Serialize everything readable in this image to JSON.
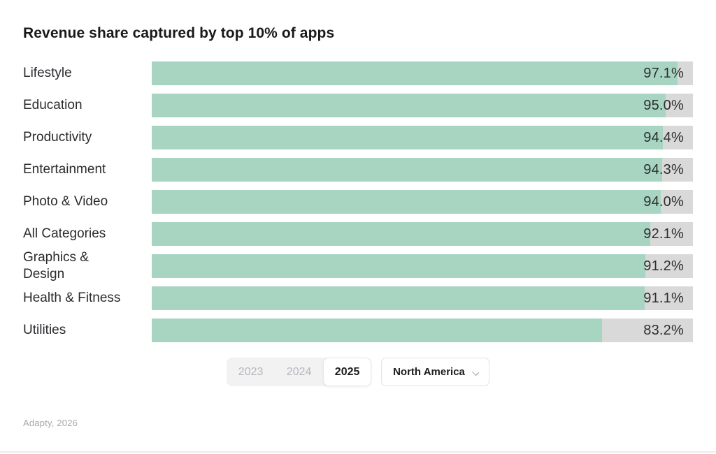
{
  "title": "Revenue share captured by top 10% of apps",
  "chart_data": {
    "type": "bar",
    "orientation": "horizontal",
    "title": "Revenue share captured by top 10% of apps",
    "categories": [
      "Lifestyle",
      "Education",
      "Productivity",
      "Entertainment",
      "Photo & Video",
      "All Categories",
      "Graphics & Design",
      "Health & Fitness",
      "Utilities"
    ],
    "values": [
      97.1,
      95.0,
      94.4,
      94.3,
      94.0,
      92.1,
      91.2,
      91.1,
      83.2
    ],
    "value_labels": [
      "97.1%",
      "95.0%",
      "94.4%",
      "94.3%",
      "94.0%",
      "92.1%",
      "91.2%",
      "91.1%",
      "83.2%"
    ],
    "xlim": [
      0,
      100
    ],
    "bar_color": "#a8d5c2",
    "track_color": "#d9d9d9",
    "grid": false,
    "legend": "none"
  },
  "rows": [
    {
      "label": "Lifestyle",
      "value": 97.1,
      "value_label": "97.1%"
    },
    {
      "label": "Education",
      "value": 95.0,
      "value_label": "95.0%"
    },
    {
      "label": "Productivity",
      "value": 94.4,
      "value_label": "94.4%"
    },
    {
      "label": "Entertainment",
      "value": 94.3,
      "value_label": "94.3%"
    },
    {
      "label": "Photo & Video",
      "value": 94.0,
      "value_label": "94.0%"
    },
    {
      "label": "All Categories",
      "value": 92.1,
      "value_label": "92.1%"
    },
    {
      "label": "Graphics &\nDesign",
      "value": 91.2,
      "value_label": "91.2%"
    },
    {
      "label": "Health & Fitness",
      "value": 91.1,
      "value_label": "91.1%"
    },
    {
      "label": "Utilities",
      "value": 83.2,
      "value_label": "83.2%"
    }
  ],
  "controls": {
    "years": [
      {
        "label": "2023",
        "selected": false
      },
      {
        "label": "2024",
        "selected": false
      },
      {
        "label": "2025",
        "selected": true
      }
    ],
    "region": {
      "label": "North America",
      "icon": "chevron-down-icon"
    }
  },
  "footer": {
    "source": "Adapty, 2026"
  }
}
